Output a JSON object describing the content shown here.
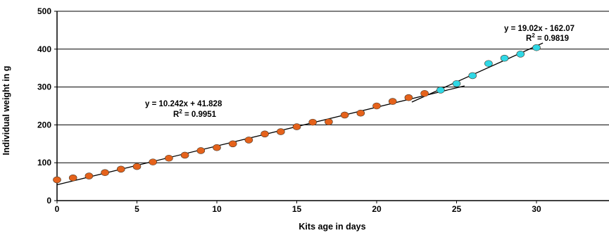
{
  "chart_data": {
    "type": "scatter",
    "title": "",
    "xlabel": "Kits age in days",
    "ylabel": "Individual weight in g",
    "xlim": [
      0,
      35
    ],
    "ylim": [
      0,
      500
    ],
    "x_ticks": [
      0,
      5,
      10,
      15,
      20,
      25,
      30
    ],
    "y_ticks": [
      0,
      100,
      200,
      300,
      400,
      500
    ],
    "grid": "horizontal",
    "colors": {
      "phase1": "#e5621b",
      "phase2": "#2fd8e6",
      "marker_edge": "#4a3a2a",
      "trendline": "#000000",
      "gridline": "#000000"
    },
    "series": [
      {
        "x": [
          0,
          1,
          2,
          3,
          4,
          5,
          6,
          7,
          8,
          9,
          10,
          11,
          12,
          13,
          14,
          15,
          16,
          17,
          18,
          19,
          20,
          21,
          22,
          23
        ],
        "y": [
          55,
          60,
          65,
          74,
          83,
          90,
          102,
          112,
          120,
          132,
          140,
          150,
          160,
          176,
          182,
          195,
          207,
          208,
          226,
          231,
          250,
          262,
          272,
          283
        ]
      },
      {
        "x": [
          24,
          25,
          26,
          27,
          28,
          29,
          30
        ],
        "y": [
          292,
          309,
          330,
          362,
          376,
          387,
          404
        ]
      }
    ],
    "trendlines": [
      {
        "equation": "y = 10.242x + 41.828",
        "r2_prefix": "R",
        "r2_sup": "2",
        "r2_suffix": " = 0.9951",
        "slope": 10.242,
        "intercept": 41.828,
        "x_range": [
          0,
          25.5
        ]
      },
      {
        "equation": "y = 19.02x - 162.07",
        "r2_prefix": "R",
        "r2_sup": "2",
        "r2_suffix": " = 0.9819",
        "slope": 19.02,
        "intercept": -162.07,
        "x_range": [
          22.2,
          30.4
        ]
      }
    ]
  }
}
